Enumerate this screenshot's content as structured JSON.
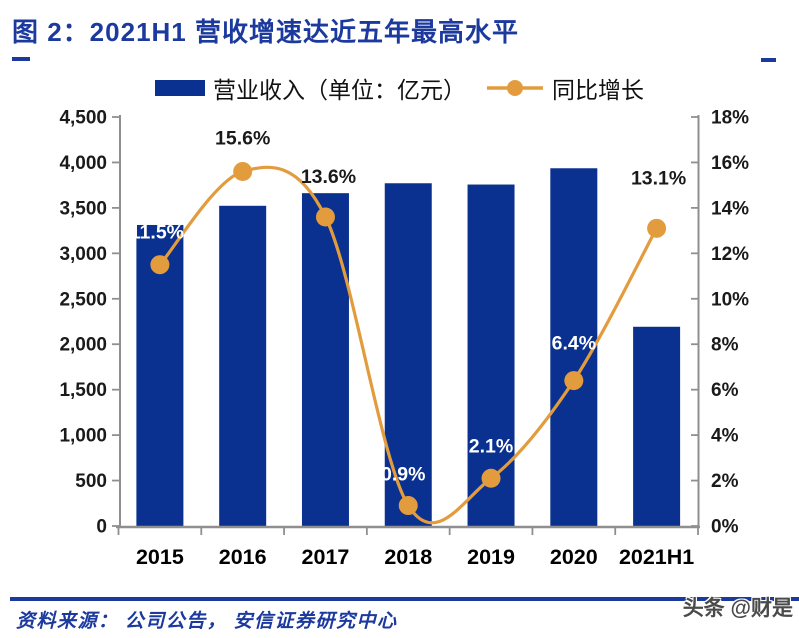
{
  "figure": {
    "title": "图 2：2021H1 营收增速达近五年最高水平",
    "source_note": "资料来源： 公司公告， 安信证券研究中心",
    "watermark": "头条 @财是"
  },
  "colors": {
    "bar_navy": "#0A3190",
    "line_orange": "#E39C3D",
    "title_blue": "#1C3A9E",
    "axis_gray": "#8F8F8F",
    "tick_label_black": "#1a1a1a",
    "point_label_white": "#ffffff"
  },
  "chart_data": {
    "type": "bar",
    "subtype": "bar-line-combo",
    "categories": [
      "2015",
      "2016",
      "2017",
      "2018",
      "2019",
      "2020",
      "2021H1"
    ],
    "series": [
      {
        "name": "营业收入（单位：亿元）",
        "type": "bar",
        "axis": "left",
        "values": [
          3312,
          3523,
          3662,
          3771,
          3757,
          3936,
          2192
        ]
      },
      {
        "name": "同比增长",
        "type": "line",
        "axis": "right",
        "values": [
          11.5,
          15.6,
          13.6,
          0.9,
          2.1,
          6.4,
          13.1
        ],
        "point_labels": [
          "11.5%",
          "15.6%",
          "13.6%",
          "0.9%",
          "2.1%",
          "6.4%",
          "13.1%"
        ],
        "point_label_colors": [
          "white",
          "black",
          "black",
          "white",
          "white",
          "white",
          "black"
        ]
      }
    ],
    "left_axis": {
      "min": 0,
      "max": 4500,
      "step": 500,
      "tick_labels_top_to_bottom": [
        "4,500",
        "4,000",
        "3,500",
        "3,000",
        "2,500",
        "2,000",
        "1,500",
        "1,000",
        "500",
        "0"
      ]
    },
    "right_axis": {
      "min": 0,
      "max": 18,
      "step": 2,
      "tick_labels_top_to_bottom": [
        "18%",
        "16%",
        "14%",
        "12%",
        "10%",
        "8%",
        "6%",
        "4%",
        "2%",
        "0%"
      ]
    },
    "grid": false,
    "legend_position": "top",
    "line_smoothing": true
  }
}
